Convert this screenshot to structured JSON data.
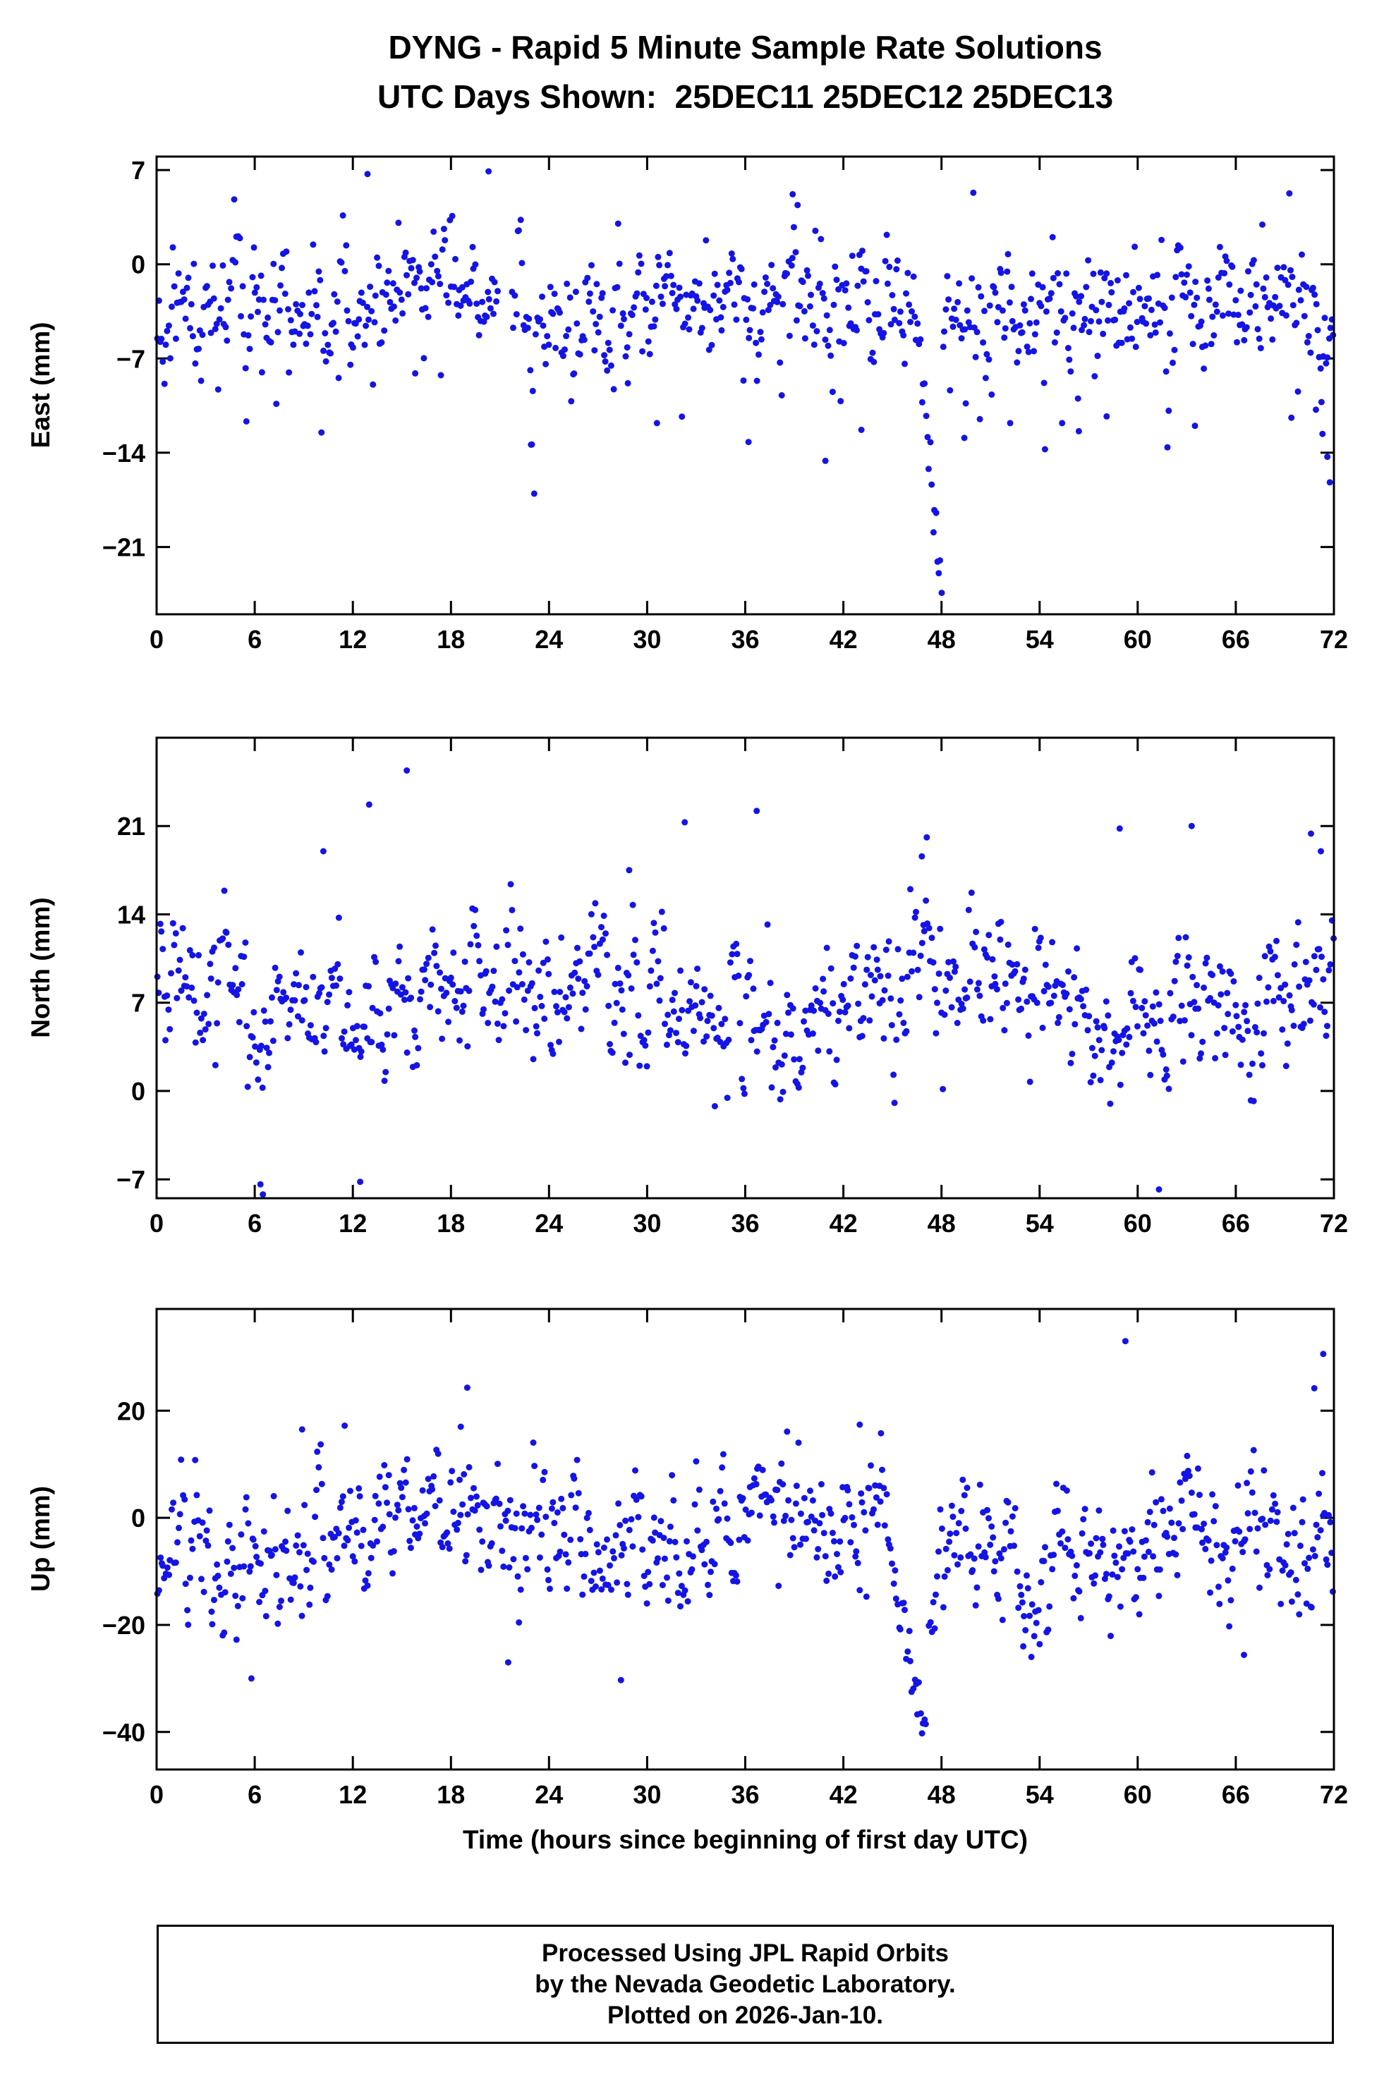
{
  "title": {
    "line1": "DYNG - Rapid 5 Minute Sample Rate Solutions",
    "line2": "UTC Days Shown:  25DEC11 25DEC12 25DEC13"
  },
  "x_axis": {
    "label": "Time (hours since beginning of first day UTC)",
    "min": 0,
    "max": 72,
    "ticks": [
      0,
      6,
      12,
      18,
      24,
      30,
      36,
      42,
      48,
      54,
      60,
      66,
      72
    ]
  },
  "colors": {
    "marker": "#1414e6",
    "frame": "#000000",
    "background": "#ffffff"
  },
  "footer": {
    "line1": "Processed Using JPL Rapid Orbits",
    "line2": "by the Nevada Geodetic Laboratory.",
    "line3": "Plotted on 2026-Jan-10."
  },
  "chart_data": [
    {
      "type": "scatter",
      "name": "East",
      "ylabel": "East (mm)",
      "ylim": [
        -26,
        8
      ],
      "yticks": {
        "values": [
          7,
          0,
          -7,
          -14,
          -21
        ],
        "labels": [
          "7",
          "0",
          "−7",
          "−14",
          "−21"
        ]
      },
      "marker": {
        "shape": "circle",
        "radius": 4.5
      },
      "generator": {
        "seed": 11,
        "n": 830,
        "base": -3.3,
        "phi": 0.5,
        "sigma": 2.0,
        "wave_amp": 0.9,
        "wave_period": 24,
        "wave_phase": 10,
        "tail_lo_p": 0.045,
        "tail_lo_min": 3,
        "tail_lo_max": 8,
        "tail_hi_p": 0.012,
        "tail_hi_min": 3,
        "tail_hi_max": 7
      },
      "gaps": [
        [
          20.9,
          21.7
        ]
      ],
      "features": [
        {
          "x0": 46.35,
          "x1": 48.05,
          "y0": -3,
          "y1": -24.8,
          "sigma": 1.5
        }
      ],
      "outliers": [
        [
          12.9,
          6.7
        ],
        [
          20.3,
          6.9
        ],
        [
          38.9,
          5.2
        ],
        [
          39.2,
          4.4
        ],
        [
          22.9,
          -13.4
        ],
        [
          30.6,
          -11.8
        ],
        [
          36.2,
          -13.2
        ],
        [
          40.9,
          -14.6
        ],
        [
          43.1,
          -12.3
        ],
        [
          49.4,
          -12.9
        ],
        [
          52.2,
          -11.8
        ],
        [
          56.4,
          -12.4
        ],
        [
          58.1,
          -11.3
        ],
        [
          63.5,
          -12.0
        ],
        [
          69.4,
          -11.4
        ],
        [
          70.9,
          -10.8
        ],
        [
          71.3,
          -12.6
        ],
        [
          71.6,
          -14.3
        ],
        [
          71.75,
          -16.2
        ]
      ]
    },
    {
      "type": "scatter",
      "name": "North",
      "ylabel": "North (mm)",
      "ylim": [
        -8.5,
        28
      ],
      "yticks": {
        "values": [
          21,
          14,
          7,
          0,
          -7
        ],
        "labels": [
          "21",
          "14",
          "7",
          "0",
          "−7"
        ]
      },
      "marker": {
        "shape": "circle",
        "radius": 4.5
      },
      "generator": {
        "seed": 22,
        "n": 830,
        "base": 6.9,
        "phi": 0.55,
        "sigma": 2.3,
        "wave_amp": 1.6,
        "wave_period": 24,
        "wave_phase": 19,
        "tail_lo_p": 0.02,
        "tail_lo_min": 3,
        "tail_lo_max": 6,
        "tail_hi_p": 0.03,
        "tail_hi_min": 3,
        "tail_hi_max": 7
      },
      "gaps": [],
      "features": [],
      "outliers": [
        [
          13.0,
          22.7
        ],
        [
          15.3,
          25.4
        ],
        [
          10.2,
          19.0
        ],
        [
          28.9,
          17.5
        ],
        [
          32.3,
          21.3
        ],
        [
          36.7,
          22.2
        ],
        [
          46.8,
          18.6
        ],
        [
          47.1,
          20.1
        ],
        [
          58.9,
          20.8
        ],
        [
          63.3,
          21.0
        ],
        [
          70.6,
          20.4
        ],
        [
          71.2,
          19.0
        ],
        [
          6.35,
          -7.4
        ],
        [
          6.5,
          -8.2
        ],
        [
          12.45,
          -7.2
        ],
        [
          61.3,
          -7.8
        ]
      ]
    },
    {
      "type": "scatter",
      "name": "Up",
      "ylabel": "Up (mm)",
      "ylim": [
        -47,
        39
      ],
      "yticks": {
        "values": [
          20,
          0,
          -20,
          -40
        ],
        "labels": [
          "20",
          "0",
          "−20",
          "−40"
        ]
      },
      "marker": {
        "shape": "circle",
        "radius": 4.5
      },
      "generator": {
        "seed": 33,
        "n": 830,
        "base": -4.5,
        "phi": 0.62,
        "sigma": 5.2,
        "wave_amp": 3.5,
        "wave_period": 24,
        "wave_phase": 12,
        "tail_lo_p": 0.03,
        "tail_lo_min": 4,
        "tail_lo_max": 10,
        "tail_hi_p": 0.02,
        "tail_hi_min": 4,
        "tail_hi_max": 9
      },
      "gaps": [],
      "features": [
        {
          "x0": 45.2,
          "x1": 47.2,
          "y0": -16,
          "y1": -43,
          "sigma": 3.0
        },
        {
          "x0": 47.2,
          "x1": 48.1,
          "y0": -24,
          "y1": -2,
          "sigma": 4.0
        }
      ],
      "outliers": [
        [
          59.25,
          33.0
        ],
        [
          19.0,
          24.3
        ],
        [
          18.6,
          17.0
        ],
        [
          8.9,
          16.5
        ],
        [
          11.5,
          17.2
        ],
        [
          43.0,
          17.4
        ],
        [
          44.3,
          15.8
        ],
        [
          70.8,
          24.2
        ],
        [
          71.35,
          30.6
        ],
        [
          5.8,
          -30.0
        ],
        [
          21.5,
          -27.0
        ],
        [
          28.4,
          -30.3
        ],
        [
          53.0,
          -24.0
        ],
        [
          66.5,
          -25.6
        ]
      ]
    }
  ]
}
